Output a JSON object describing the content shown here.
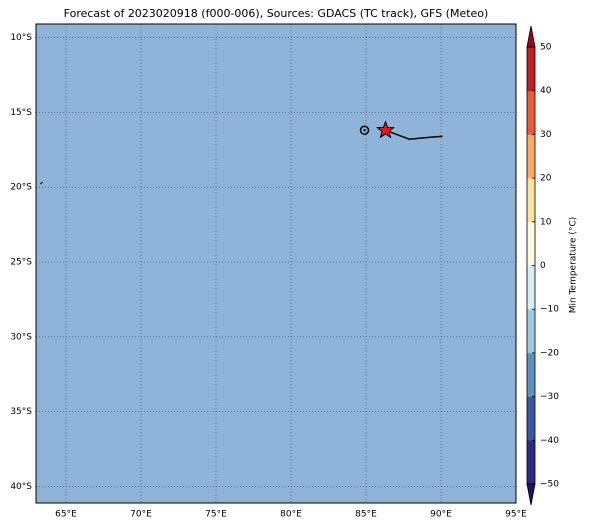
{
  "chart_data": {
    "type": "map",
    "title": "Forecast of 2023020918 (f000-006), Sources: GDACS (TC track), GFS (Meteo)",
    "background_color": "#8fb3d9",
    "grid": true,
    "xlim": [
      63,
      95
    ],
    "ylim": [
      -41.1,
      -9.1
    ],
    "xticks": [
      {
        "value": 65,
        "label": "65°E"
      },
      {
        "value": 70,
        "label": "70°E"
      },
      {
        "value": 75,
        "label": "75°E"
      },
      {
        "value": 80,
        "label": "80°E"
      },
      {
        "value": 85,
        "label": "85°E"
      },
      {
        "value": 90,
        "label": "90°E"
      },
      {
        "value": 95,
        "label": "95°E"
      }
    ],
    "yticks": [
      {
        "value": -10,
        "label": "10°S"
      },
      {
        "value": -15,
        "label": "15°S"
      },
      {
        "value": -20,
        "label": "20°S"
      },
      {
        "value": -25,
        "label": "25°S"
      },
      {
        "value": -30,
        "label": "30°S"
      },
      {
        "value": -35,
        "label": "35°S"
      },
      {
        "value": -40,
        "label": "40°S"
      }
    ],
    "track": {
      "lon": [
        86.3,
        87.9,
        88.9,
        90.1
      ],
      "lat": [
        -16.2,
        -16.8,
        -16.7,
        -16.6
      ],
      "color": "#000000"
    },
    "position_circle": {
      "lon": 84.9,
      "lat": -16.2
    },
    "position_star": {
      "lon": 86.3,
      "lat": -16.2,
      "color": "#e8141c"
    },
    "colorbar": {
      "label": "Min Temperature (°C)",
      "lim": [
        -50,
        50
      ],
      "ticks": [
        {
          "value": -50,
          "label": "−50"
        },
        {
          "value": -40,
          "label": "−40"
        },
        {
          "value": -30,
          "label": "−30"
        },
        {
          "value": -20,
          "label": "−20"
        },
        {
          "value": -10,
          "label": "−10"
        },
        0,
        10,
        20,
        30,
        40,
        50
      ],
      "colors": [
        "#2c2a82",
        "#3b56a4",
        "#5f90c2",
        "#9cc8e0",
        "#d8eef5",
        "#fffbe3",
        "#fde3a3",
        "#fbab66",
        "#ea5a3d",
        "#c01f27"
      ],
      "under_color": "#1c1660",
      "over_color": "#a00026"
    }
  }
}
